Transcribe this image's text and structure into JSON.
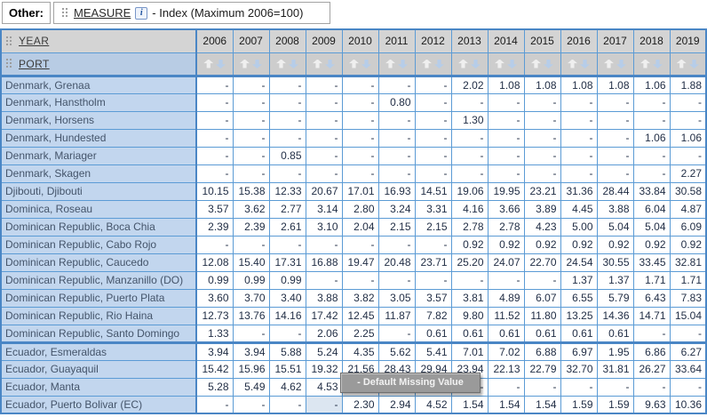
{
  "topbar": {
    "other_label": "Other:",
    "measure": {
      "link_label": "MEASURE",
      "info_icon": "i",
      "text": "- Index (Maximum 2006=100)"
    }
  },
  "colors": {
    "grid_blue": "#5b9bd5",
    "accent_blue": "#4a86c5",
    "header_gray": "#d4d4d4",
    "label_blue": "#c2d6ee",
    "port_header_blue": "#b8cce4",
    "hover_cell": "#dce6f1",
    "tooltip_gray": "#9a9a9a"
  },
  "table": {
    "row_header_title": "YEAR",
    "col_header_title": "PORT",
    "years": [
      "2006",
      "2007",
      "2008",
      "2009",
      "2010",
      "2011",
      "2012",
      "2013",
      "2014",
      "2015",
      "2016",
      "2017",
      "2018",
      "2019"
    ],
    "sort_icons": [
      "sort-ascending-icon",
      "sort-descending-icon"
    ],
    "rows": [
      {
        "port": "Denmark, Grenaa",
        "values": [
          "-",
          "-",
          "-",
          "-",
          "-",
          "-",
          "-",
          "2.02",
          "1.08",
          "1.08",
          "1.08",
          "1.08",
          "1.06",
          "1.88"
        ]
      },
      {
        "port": "Denmark, Hanstholm",
        "values": [
          "-",
          "-",
          "-",
          "-",
          "-",
          "0.80",
          "-",
          "-",
          "-",
          "-",
          "-",
          "-",
          "-",
          "-"
        ]
      },
      {
        "port": "Denmark, Horsens",
        "values": [
          "-",
          "-",
          "-",
          "-",
          "-",
          "-",
          "-",
          "1.30",
          "-",
          "-",
          "-",
          "-",
          "-",
          "-"
        ]
      },
      {
        "port": "Denmark, Hundested",
        "values": [
          "-",
          "-",
          "-",
          "-",
          "-",
          "-",
          "-",
          "-",
          "-",
          "-",
          "-",
          "-",
          "1.06",
          "1.06"
        ]
      },
      {
        "port": "Denmark, Mariager",
        "values": [
          "-",
          "-",
          "0.85",
          "-",
          "-",
          "-",
          "-",
          "-",
          "-",
          "-",
          "-",
          "-",
          "-",
          "-"
        ]
      },
      {
        "port": "Denmark, Skagen",
        "values": [
          "-",
          "-",
          "-",
          "-",
          "-",
          "-",
          "-",
          "-",
          "-",
          "-",
          "-",
          "-",
          "-",
          "2.27"
        ]
      },
      {
        "port": "Djibouti, Djibouti",
        "values": [
          "10.15",
          "15.38",
          "12.33",
          "20.67",
          "17.01",
          "16.93",
          "14.51",
          "19.06",
          "19.95",
          "23.21",
          "31.36",
          "28.44",
          "33.84",
          "30.58"
        ]
      },
      {
        "port": "Dominica, Roseau",
        "values": [
          "3.57",
          "3.62",
          "2.77",
          "3.14",
          "2.80",
          "3.24",
          "3.31",
          "4.16",
          "3.66",
          "3.89",
          "4.45",
          "3.88",
          "6.04",
          "4.87"
        ]
      },
      {
        "port": "Dominican Republic, Boca Chia",
        "values": [
          "2.39",
          "2.39",
          "2.61",
          "3.10",
          "2.04",
          "2.15",
          "2.15",
          "2.78",
          "2.78",
          "4.23",
          "5.00",
          "5.04",
          "5.04",
          "6.09"
        ]
      },
      {
        "port": "Dominican Republic, Cabo Rojo",
        "values": [
          "-",
          "-",
          "-",
          "-",
          "-",
          "-",
          "-",
          "0.92",
          "0.92",
          "0.92",
          "0.92",
          "0.92",
          "0.92",
          "0.92"
        ]
      },
      {
        "port": "Dominican Republic, Caucedo",
        "values": [
          "12.08",
          "15.40",
          "17.31",
          "16.88",
          "19.47",
          "20.48",
          "23.71",
          "25.20",
          "24.07",
          "22.70",
          "24.54",
          "30.55",
          "33.45",
          "32.81"
        ]
      },
      {
        "port": "Dominican Republic, Manzanillo (DO)",
        "values": [
          "0.99",
          "0.99",
          "0.99",
          "-",
          "-",
          "-",
          "-",
          "-",
          "-",
          "-",
          "1.37",
          "1.37",
          "1.71",
          "1.71"
        ]
      },
      {
        "port": "Dominican Republic, Puerto Plata",
        "values": [
          "3.60",
          "3.70",
          "3.40",
          "3.88",
          "3.82",
          "3.05",
          "3.57",
          "3.81",
          "4.89",
          "6.07",
          "6.55",
          "5.79",
          "6.43",
          "7.83"
        ]
      },
      {
        "port": "Dominican Republic, Rio Haina",
        "values": [
          "12.73",
          "13.76",
          "14.16",
          "17.42",
          "12.45",
          "11.87",
          "7.82",
          "9.80",
          "11.52",
          "11.80",
          "13.25",
          "14.36",
          "14.71",
          "15.04"
        ]
      },
      {
        "port": "Dominican Republic, Santo Domingo",
        "values": [
          "1.33",
          "-",
          "-",
          "2.06",
          "2.25",
          "-",
          "0.61",
          "0.61",
          "0.61",
          "0.61",
          "0.61",
          "0.61",
          "-",
          "-"
        ]
      },
      {
        "port": "Ecuador, Esmeraldas",
        "values": [
          "3.94",
          "3.94",
          "5.88",
          "5.24",
          "4.35",
          "5.62",
          "5.41",
          "7.01",
          "7.02",
          "6.88",
          "6.97",
          "1.95",
          "6.86",
          "6.27"
        ]
      },
      {
        "port": "Ecuador, Guayaquil",
        "values": [
          "15.42",
          "15.96",
          "15.51",
          "19.32",
          "21.56",
          "28.43",
          "29.94",
          "23.94",
          "22.13",
          "22.79",
          "32.70",
          "31.81",
          "26.27",
          "33.64"
        ]
      },
      {
        "port": "Ecuador, Manta",
        "values": [
          "5.28",
          "5.49",
          "4.62",
          "4.53",
          "-",
          "-",
          "-",
          "-",
          "-",
          "-",
          "-",
          "-",
          "-",
          "-"
        ]
      },
      {
        "port": "Ecuador, Puerto Bolivar (EC)",
        "values": [
          "-",
          "-",
          "-",
          "-",
          "2.30",
          "2.94",
          "4.52",
          "1.54",
          "1.54",
          "1.54",
          "1.59",
          "1.59",
          "9.63",
          "10.36"
        ]
      }
    ],
    "group_highlight_start_row_index": 15,
    "hovered_cell": {
      "row_index": 18,
      "year_index": 3,
      "year": "2009",
      "value": "-"
    }
  },
  "tooltip": {
    "text": "- Default Missing Value"
  }
}
